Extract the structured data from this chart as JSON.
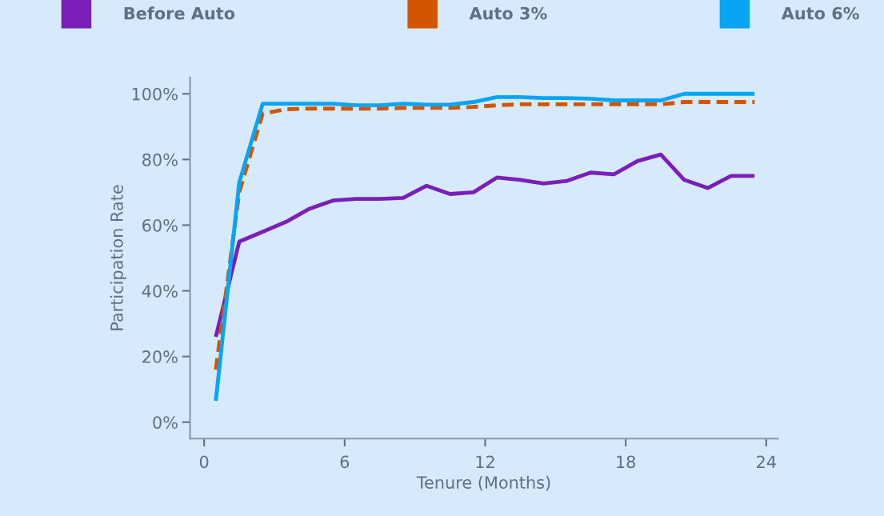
{
  "chart_data": {
    "type": "line",
    "xlabel": "Tenure (Months)",
    "ylabel": "Participation Rate",
    "x": [
      0.5,
      1.5,
      2.5,
      3.5,
      4.5,
      5.5,
      6.5,
      7.5,
      8.5,
      9.5,
      10.5,
      11.5,
      12.5,
      13.5,
      14.5,
      15.5,
      16.5,
      17.5,
      18.5,
      19.5,
      20.5,
      21.5,
      22.5,
      23.5
    ],
    "series": [
      {
        "name": "Before Auto",
        "color": "#7a1fb8",
        "line_style": "solid",
        "values": [
          26,
          55,
          58,
          61,
          65,
          67.5,
          68,
          68,
          68.3,
          72,
          69.5,
          70,
          74.5,
          73.8,
          72.7,
          73.5,
          76,
          75.5,
          79.5,
          81.5,
          73.8,
          71.3,
          75,
          75
        ]
      },
      {
        "name": "Auto 3%",
        "color": "#d45500",
        "line_style": "dashed",
        "values": [
          16,
          70,
          94,
          95.3,
          95.5,
          95.5,
          95.5,
          95.5,
          95.7,
          95.7,
          95.7,
          96,
          96.5,
          96.8,
          96.8,
          96.8,
          96.8,
          96.8,
          96.8,
          96.8,
          97.5,
          97.5,
          97.5,
          97.5
        ]
      },
      {
        "name": "Auto 6%",
        "color": "#0aa4f5",
        "line_style": "solid",
        "values": [
          6.5,
          73,
          97,
          97,
          97,
          97,
          96.5,
          96.5,
          97,
          96.7,
          96.7,
          97.5,
          99,
          99,
          98.7,
          98.7,
          98.5,
          98,
          98,
          98,
          100,
          100,
          100,
          100
        ]
      }
    ],
    "xlim": [
      -0.6,
      24.5
    ],
    "xticks": [
      0,
      6,
      12,
      18,
      24
    ],
    "ylim": [
      -5,
      105
    ],
    "yticks": [
      {
        "value": 0,
        "label": "0%"
      },
      {
        "value": 20,
        "label": "20%"
      },
      {
        "value": 40,
        "label": "40%"
      },
      {
        "value": 60,
        "label": "60%"
      },
      {
        "value": 80,
        "label": "80%"
      },
      {
        "value": 100,
        "label": "100%"
      }
    ],
    "grid": false,
    "legend": "top",
    "marker": "none"
  }
}
